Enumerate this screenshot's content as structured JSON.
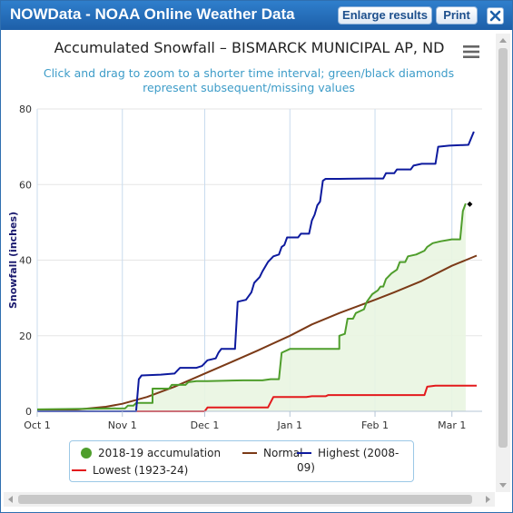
{
  "window": {
    "title": "NOWData - NOAA Online Weather Data",
    "enlarge_label": "Enlarge results",
    "print_label": "Print",
    "close_icon": "close-icon"
  },
  "chart_data": {
    "type": "line",
    "title": "Accumulated Snowfall – BISMARCK MUNICIPAL AP, ND",
    "subtitle": "Click and drag to zoom to a shorter time interval; green/black diamonds represent subsequent/missing values",
    "xlabel": "",
    "ylabel": "Snowfall (inches)",
    "ylim": [
      0,
      80
    ],
    "yticks": [
      0,
      20,
      40,
      60,
      80
    ],
    "xlim": [
      "Oct 1",
      "Mar 12"
    ],
    "xticks": [
      {
        "label": "Oct 1",
        "day": 0
      },
      {
        "label": "Nov 1",
        "day": 31
      },
      {
        "label": "Dec 1",
        "day": 61
      },
      {
        "label": "Jan 1",
        "day": 92
      },
      {
        "label": "Feb 1",
        "day": 123
      },
      {
        "label": "Mar 1",
        "day": 151
      }
    ],
    "grid": true,
    "legend_position": "bottom",
    "series": [
      {
        "name": "2018-19 accumulation",
        "color": "#4f9e2c",
        "points": [
          [
            0,
            0.5
          ],
          [
            10,
            0.6
          ],
          [
            20,
            0.7
          ],
          [
            32,
            0.8
          ],
          [
            33,
            1.5
          ],
          [
            35,
            1.5
          ],
          [
            36,
            2.2
          ],
          [
            42,
            2.2
          ],
          [
            42,
            6.0
          ],
          [
            48,
            6.0
          ],
          [
            49,
            7.0
          ],
          [
            54,
            7.0
          ],
          [
            55,
            7.7
          ],
          [
            58,
            8.0
          ],
          [
            62,
            8.0
          ],
          [
            75,
            8.2
          ],
          [
            82,
            8.2
          ],
          [
            85,
            8.5
          ],
          [
            88,
            8.5
          ],
          [
            89,
            15.5
          ],
          [
            92,
            16.5
          ],
          [
            103,
            16.5
          ],
          [
            110,
            16.5
          ],
          [
            110,
            20.0
          ],
          [
            112,
            20.5
          ],
          [
            113,
            24.5
          ],
          [
            115,
            24.5
          ],
          [
            116,
            26.0
          ],
          [
            119,
            27.0
          ],
          [
            120,
            29.0
          ],
          [
            122,
            31.0
          ],
          [
            124,
            32.0
          ],
          [
            125,
            33.0
          ],
          [
            126,
            33.0
          ],
          [
            127,
            35.0
          ],
          [
            129,
            36.5
          ],
          [
            131,
            37.5
          ],
          [
            132,
            39.5
          ],
          [
            134,
            39.5
          ],
          [
            135,
            41.0
          ],
          [
            138,
            41.5
          ],
          [
            141,
            42.5
          ],
          [
            142,
            43.5
          ],
          [
            144,
            44.5
          ],
          [
            147,
            45.0
          ],
          [
            151,
            45.5
          ],
          [
            154,
            45.5
          ],
          [
            155,
            53.0
          ],
          [
            156,
            55.0
          ]
        ]
      },
      {
        "name": "Normal",
        "color": "#7b3a17",
        "points": [
          [
            0,
            0.1
          ],
          [
            15,
            0.5
          ],
          [
            25,
            1.2
          ],
          [
            31,
            2.0
          ],
          [
            40,
            3.8
          ],
          [
            50,
            6.5
          ],
          [
            61,
            10.0
          ],
          [
            70,
            12.8
          ],
          [
            80,
            16.0
          ],
          [
            92,
            20.0
          ],
          [
            100,
            23.0
          ],
          [
            110,
            26.0
          ],
          [
            123,
            29.5
          ],
          [
            130,
            31.5
          ],
          [
            140,
            34.5
          ],
          [
            151,
            38.5
          ],
          [
            156,
            40.0
          ],
          [
            160,
            41.2
          ]
        ]
      },
      {
        "name": "Highest (2008-09)",
        "color": "#0d1a9e",
        "points": [
          [
            0,
            0
          ],
          [
            36,
            0
          ],
          [
            37,
            8.5
          ],
          [
            38,
            9.5
          ],
          [
            45,
            9.7
          ],
          [
            50,
            10.0
          ],
          [
            52,
            11.5
          ],
          [
            58,
            11.5
          ],
          [
            60,
            12.0
          ],
          [
            62,
            13.5
          ],
          [
            65,
            14.0
          ],
          [
            66,
            15.5
          ],
          [
            67,
            16.5
          ],
          [
            72,
            16.5
          ],
          [
            73,
            29.0
          ],
          [
            76,
            29.5
          ],
          [
            78,
            31.5
          ],
          [
            79,
            34.0
          ],
          [
            81,
            35.5
          ],
          [
            82,
            37.0
          ],
          [
            84,
            39.5
          ],
          [
            86,
            41.0
          ],
          [
            88,
            41.5
          ],
          [
            89,
            43.5
          ],
          [
            90,
            44.0
          ],
          [
            91,
            46.0
          ],
          [
            95,
            46.0
          ],
          [
            96,
            47.0
          ],
          [
            99,
            47.0
          ],
          [
            100,
            50.5
          ],
          [
            101,
            52.0
          ],
          [
            102,
            54.5
          ],
          [
            103,
            55.5
          ],
          [
            104,
            61.0
          ],
          [
            105,
            61.5
          ],
          [
            110,
            61.5
          ],
          [
            120,
            61.6
          ],
          [
            126,
            61.6
          ],
          [
            127,
            63.0
          ],
          [
            130,
            63.0
          ],
          [
            131,
            64.0
          ],
          [
            136,
            64.0
          ],
          [
            137,
            65.0
          ],
          [
            140,
            65.5
          ],
          [
            145,
            65.5
          ],
          [
            146,
            70.0
          ],
          [
            150,
            70.3
          ],
          [
            157,
            70.5
          ],
          [
            159,
            74.0
          ]
        ]
      },
      {
        "name": "Lowest (1923-24)",
        "color": "#e31a1c",
        "points": [
          [
            0,
            0
          ],
          [
            61,
            0
          ],
          [
            62,
            1.0
          ],
          [
            84,
            1.0
          ],
          [
            86,
            3.8
          ],
          [
            98,
            3.8
          ],
          [
            100,
            4.0
          ],
          [
            105,
            4.0
          ],
          [
            106,
            4.3
          ],
          [
            141,
            4.3
          ],
          [
            142,
            6.5
          ],
          [
            145,
            6.8
          ],
          [
            160,
            6.8
          ]
        ]
      }
    ],
    "missing_marker": {
      "day": 157.5,
      "value": 54.8,
      "color": "#000000"
    }
  },
  "icons": {
    "menu": "hamburger-menu-icon",
    "close": "close-icon"
  }
}
